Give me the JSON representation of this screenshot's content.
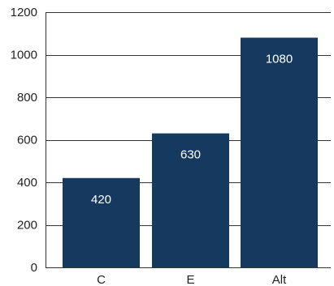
{
  "chart_data": {
    "type": "bar",
    "categories": [
      "C",
      "E",
      "Alt"
    ],
    "values": [
      420,
      630,
      1080
    ],
    "data_labels": [
      "420",
      "630",
      "1080"
    ],
    "y_ticks": [
      0,
      200,
      400,
      600,
      800,
      1000,
      1200
    ],
    "ylim": [
      0,
      1200
    ],
    "grid": true,
    "bar_color": "#163a5f",
    "grid_color": "#333333",
    "label_color": "#ffffff"
  }
}
